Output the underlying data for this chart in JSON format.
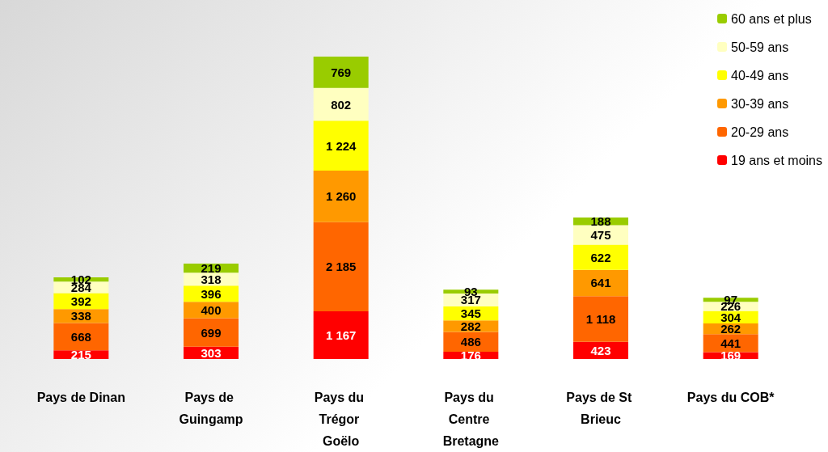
{
  "chart_data": {
    "type": "bar",
    "stacked": true,
    "legend": "top right",
    "categories": [
      "Pays de Dinan",
      "Pays de Guingamp",
      "Pays du Trégor Goëlo",
      "Pays du Centre Bretagne",
      "Pays de St Brieuc",
      "Pays du COB*"
    ],
    "series": [
      {
        "name": "19 ans et moins",
        "color": "#ff0000",
        "values": [
          215,
          303,
          1167,
          176,
          423,
          169
        ],
        "value_labels": [
          "215",
          "303",
          "1 167",
          "176",
          "423",
          "169"
        ]
      },
      {
        "name": "20-29 ans",
        "color": "#ff6600",
        "values": [
          668,
          699,
          2185,
          486,
          1118,
          441
        ],
        "value_labels": [
          "668",
          "699",
          "2 185",
          "486",
          "1 118",
          "441"
        ]
      },
      {
        "name": "30-39 ans",
        "color": "#ff9900",
        "values": [
          338,
          400,
          1260,
          282,
          641,
          262
        ],
        "value_labels": [
          "338",
          "400",
          "1 260",
          "282",
          "641",
          "262"
        ]
      },
      {
        "name": "40-49 ans",
        "color": "#ffff00",
        "values": [
          392,
          396,
          1224,
          345,
          622,
          304
        ],
        "value_labels": [
          "392",
          "396",
          "1 224",
          "345",
          "622",
          "304"
        ]
      },
      {
        "name": "50-59 ans",
        "color": "#ffffc0",
        "values": [
          284,
          318,
          802,
          317,
          475,
          226
        ],
        "value_labels": [
          "284",
          "318",
          "802",
          "317",
          "475",
          "226"
        ]
      },
      {
        "name": "60 ans et plus",
        "color": "#99cc00",
        "values": [
          102,
          219,
          769,
          93,
          188,
          97
        ],
        "value_labels": [
          "102",
          "219",
          "769",
          "93",
          "188",
          "97"
        ]
      }
    ]
  }
}
